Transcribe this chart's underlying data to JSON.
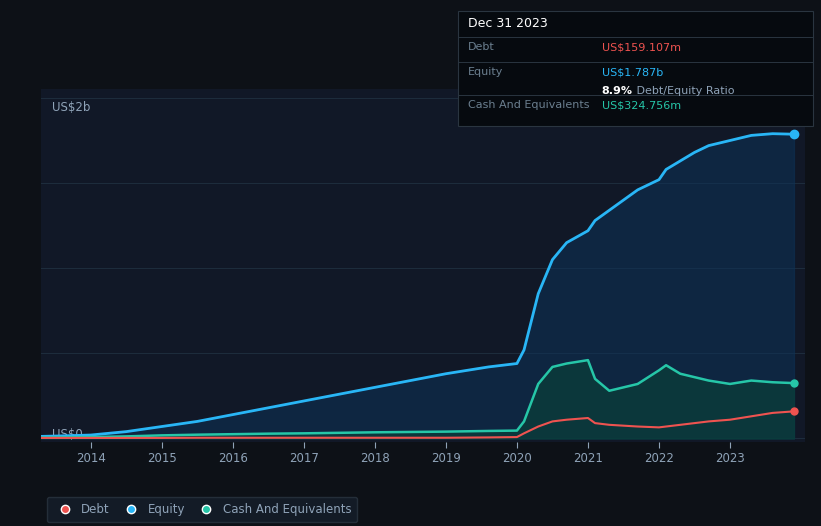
{
  "background_color": "#0d1117",
  "plot_bg_color": "#111827",
  "ylabel_top": "US$2b",
  "ylabel_bottom": "US$0",
  "x_labels": [
    "2014",
    "2015",
    "2016",
    "2017",
    "2018",
    "2019",
    "2020",
    "2021",
    "2022",
    "2023"
  ],
  "years": [
    2013.0,
    2013.3,
    2013.6,
    2014.0,
    2014.5,
    2015.0,
    2015.5,
    2016.0,
    2016.5,
    2017.0,
    2017.5,
    2018.0,
    2018.5,
    2019.0,
    2019.3,
    2019.6,
    2020.0,
    2020.1,
    2020.3,
    2020.5,
    2020.7,
    2021.0,
    2021.1,
    2021.3,
    2021.5,
    2021.7,
    2022.0,
    2022.1,
    2022.3,
    2022.5,
    2022.7,
    2023.0,
    2023.3,
    2023.6,
    2023.9
  ],
  "equity": [
    0.01,
    0.012,
    0.015,
    0.02,
    0.04,
    0.07,
    0.1,
    0.14,
    0.18,
    0.22,
    0.26,
    0.3,
    0.34,
    0.38,
    0.4,
    0.42,
    0.44,
    0.52,
    0.85,
    1.05,
    1.15,
    1.22,
    1.28,
    1.34,
    1.4,
    1.46,
    1.52,
    1.58,
    1.63,
    1.68,
    1.72,
    1.75,
    1.78,
    1.79,
    1.787
  ],
  "debt": [
    0.003,
    0.003,
    0.003,
    0.003,
    0.003,
    0.003,
    0.004,
    0.004,
    0.004,
    0.004,
    0.004,
    0.004,
    0.004,
    0.004,
    0.005,
    0.006,
    0.008,
    0.03,
    0.07,
    0.1,
    0.11,
    0.12,
    0.09,
    0.08,
    0.075,
    0.07,
    0.065,
    0.07,
    0.08,
    0.09,
    0.1,
    0.11,
    0.13,
    0.15,
    0.159
  ],
  "cash": [
    0.005,
    0.005,
    0.006,
    0.008,
    0.012,
    0.018,
    0.022,
    0.025,
    0.028,
    0.03,
    0.033,
    0.036,
    0.038,
    0.04,
    0.042,
    0.044,
    0.046,
    0.1,
    0.32,
    0.42,
    0.44,
    0.46,
    0.35,
    0.28,
    0.3,
    0.32,
    0.4,
    0.43,
    0.38,
    0.36,
    0.34,
    0.32,
    0.34,
    0.33,
    0.325
  ],
  "equity_color": "#29b6f6",
  "debt_color": "#ef5350",
  "cash_color": "#26c6a8",
  "equity_fill_alpha": 0.55,
  "cash_fill_alpha": 0.75,
  "equity_fill_color": "#0d3358",
  "cash_fill_color": "#0a3d3a",
  "grid_color": "#1e2d3d",
  "text_color": "#8fa3b8",
  "tooltip_bg": "#060a0f",
  "tooltip_border": "#2a3540",
  "tooltip_title_color": "#ffffff",
  "tooltip_label_color": "#6b7f8f",
  "tooltip_debt_color": "#ef5350",
  "tooltip_equity_color": "#29b6f6",
  "tooltip_cash_color": "#26c6a8",
  "tooltip_ratio_color": "#ffffff",
  "tooltip_ratio_label_color": "#8fa3b8",
  "legend_bg": "#151e2b",
  "legend_border": "#2a3540"
}
